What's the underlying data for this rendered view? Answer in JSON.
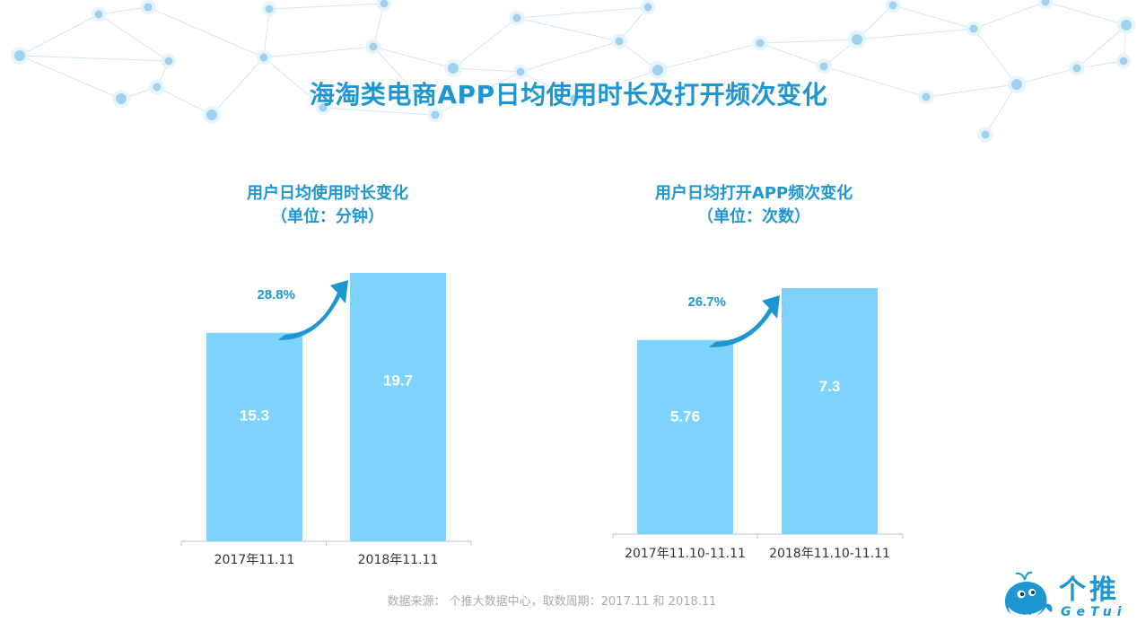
{
  "header": {
    "title": "海淘类电商APP日均使用时长及打开频次变化"
  },
  "charts_text": [
    {
      "title_line1": "用户日均使用时长变化",
      "title_line2": "（单位：分钟）"
    },
    {
      "title_line1": "用户日均打开APP频次变化",
      "title_line2": "（单位：次数）"
    }
  ],
  "chart_data": [
    {
      "type": "bar",
      "title": "用户日均使用时长变化（单位：分钟）",
      "categories": [
        "2017年11.11",
        "2018年11.11"
      ],
      "values": [
        15.3,
        19.7
      ],
      "value_labels": [
        "15.3",
        "19.7"
      ],
      "growth_label": "28.8%",
      "bar_color": "#7dd3fb",
      "label_color": "#ffffff",
      "accent_color": "#1e96d2"
    },
    {
      "type": "bar",
      "title": "用户日均打开APP频次变化（单位：次数）",
      "categories": [
        "2017年11.10-11.11",
        "2018年11.10-11.11"
      ],
      "values": [
        5.76,
        7.3
      ],
      "value_labels": [
        "5.76",
        "7.3"
      ],
      "growth_label": "26.7%",
      "bar_color": "#7dd3fb",
      "label_color": "#ffffff",
      "accent_color": "#1e96d2"
    }
  ],
  "footer": {
    "source": "数据来源： 个推大数据中心，取数周期：2017.11 和 2018.11"
  },
  "logo": {
    "name_cn": "个推",
    "name_en": "GeTui",
    "icon": "whale-icon"
  }
}
